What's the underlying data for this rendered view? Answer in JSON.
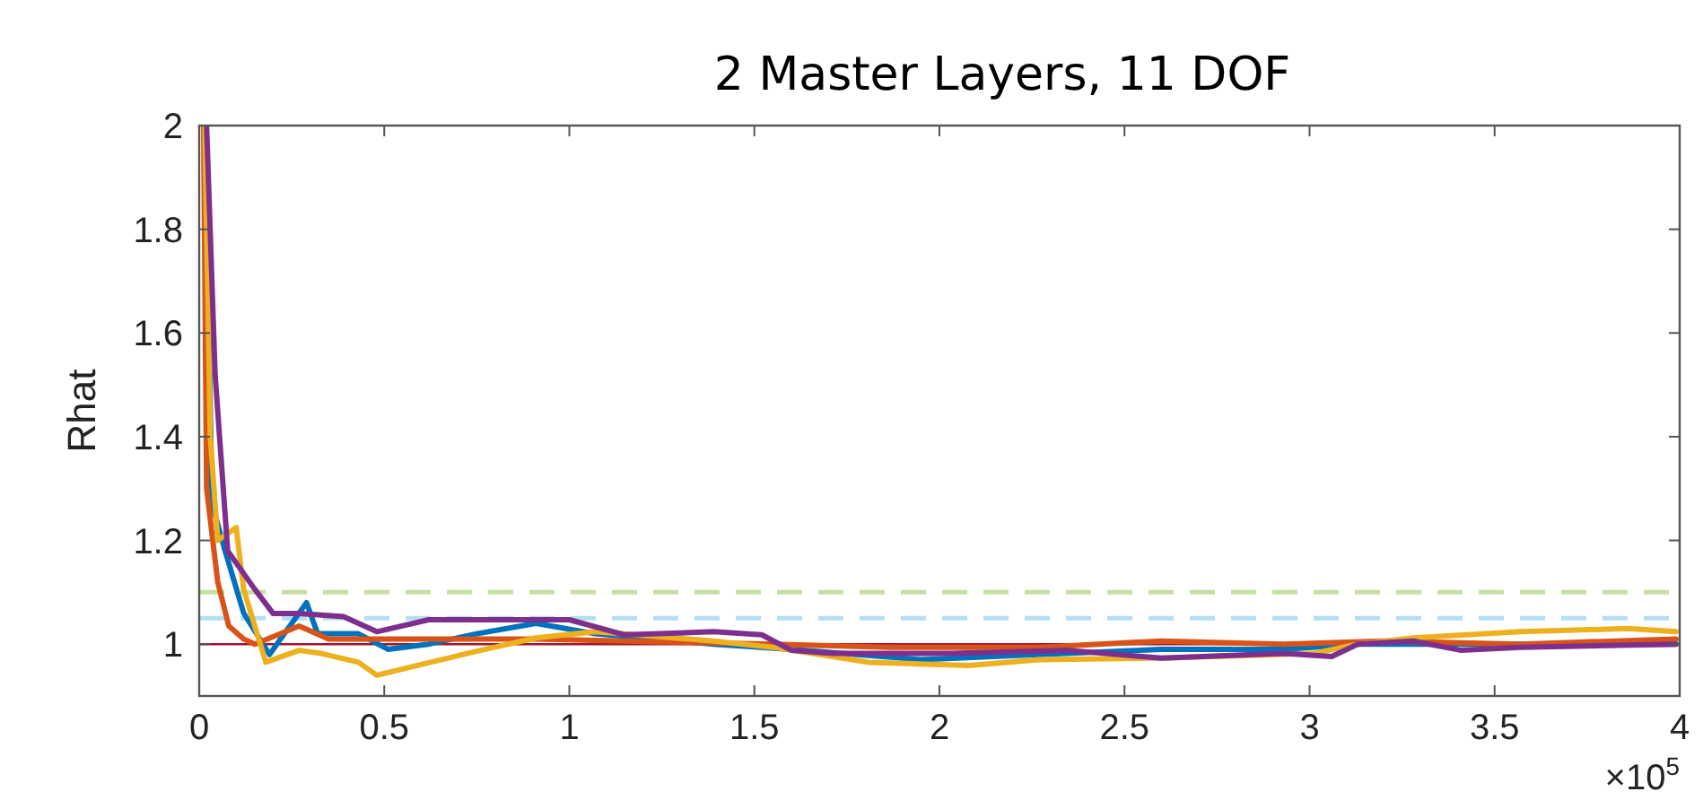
{
  "chart_data": {
    "type": "line",
    "title": "2 Master Layers, 11 DOF",
    "ylabel": "Rhat",
    "annotations": [
      "×10$^{5}$"
    ],
    "xlim": [
      0,
      4
    ],
    "ylim": [
      0.9,
      2
    ],
    "xticks": [
      0,
      0.5,
      1,
      1.5,
      2,
      2.5,
      3,
      3.5,
      4
    ],
    "yticks": [
      1,
      1.2,
      1.4,
      1.6,
      1.8,
      2
    ],
    "grid": false,
    "line_style": "solid",
    "marker": "none",
    "ref_lines": [
      {
        "axis": "y",
        "value": 1,
        "color": "#a2142f",
        "line_style": "solid"
      },
      {
        "axis": "y",
        "value": 1.05,
        "color": "#b3dff5",
        "line_style": "dashed"
      },
      {
        "axis": "y",
        "value": 1.1,
        "color": "#c5e0a5",
        "line_style": "dashed"
      }
    ],
    "series": [
      {
        "color": "#0072bd",
        "x": [
          0.015,
          0.035,
          0.07,
          0.12,
          0.19,
          0.27,
          0.29,
          0.32,
          0.43,
          0.51,
          0.62,
          0.75,
          0.91,
          1.07,
          1.39,
          1.6,
          1.95,
          2.27,
          2.6,
          2.93,
          3.13,
          3.57,
          3.99
        ],
        "values": [
          2,
          1.27,
          1.18,
          1.06,
          0.98,
          1.06,
          1.08,
          1.02,
          1.02,
          0.99,
          1.0,
          1.02,
          1.04,
          1.02,
          1.0,
          0.99,
          0.97,
          0.98,
          0.99,
          0.99,
          1.0,
          1.0,
          1.0
        ]
      },
      {
        "color": "#d95319",
        "x": [
          0.012,
          0.02,
          0.05,
          0.08,
          0.12,
          0.15,
          0.27,
          0.35,
          0.48,
          0.67,
          0.91,
          1.15,
          1.55,
          1.87,
          2.27,
          2.6,
          2.93,
          3.2,
          3.57,
          3.99
        ],
        "values": [
          2,
          1.3,
          1.12,
          1.035,
          1.01,
          1.0,
          1.035,
          1.01,
          1.01,
          1.01,
          1.01,
          1.006,
          1.0,
          0.994,
          0.994,
          1.006,
          1.0,
          1.006,
          1.0,
          1.01
        ]
      },
      {
        "color": "#edb120",
        "x": [
          0.015,
          0.03,
          0.05,
          0.1,
          0.12,
          0.18,
          0.27,
          0.33,
          0.43,
          0.48,
          0.59,
          0.76,
          0.91,
          1.07,
          1.39,
          1.55,
          1.81,
          2.08,
          2.27,
          2.6,
          3.01,
          3.13,
          3.28,
          3.57,
          3.86,
          3.99
        ],
        "values": [
          2,
          1.4,
          1.2,
          1.225,
          1.106,
          0.965,
          0.988,
          0.982,
          0.965,
          0.94,
          0.959,
          0.988,
          1.012,
          1.024,
          1.006,
          0.994,
          0.965,
          0.959,
          0.97,
          0.973,
          0.982,
          1.0,
          1.012,
          1.024,
          1.03,
          1.024
        ]
      },
      {
        "color": "#7e2f8e",
        "x": [
          0.02,
          0.043,
          0.077,
          0.15,
          0.2,
          0.27,
          0.39,
          0.48,
          0.62,
          0.85,
          1.0,
          1.15,
          1.39,
          1.52,
          1.6,
          1.71,
          2.03,
          2.35,
          2.6,
          2.93,
          3.06,
          3.13,
          3.28,
          3.41,
          3.57,
          3.99
        ],
        "values": [
          2,
          1.52,
          1.18,
          1.106,
          1.059,
          1.059,
          1.053,
          1.024,
          1.047,
          1.047,
          1.047,
          1.018,
          1.024,
          1.018,
          0.988,
          0.982,
          0.982,
          0.988,
          0.973,
          0.982,
          0.976,
          1.0,
          1.006,
          0.988,
          0.994,
          1.0
        ]
      }
    ]
  }
}
